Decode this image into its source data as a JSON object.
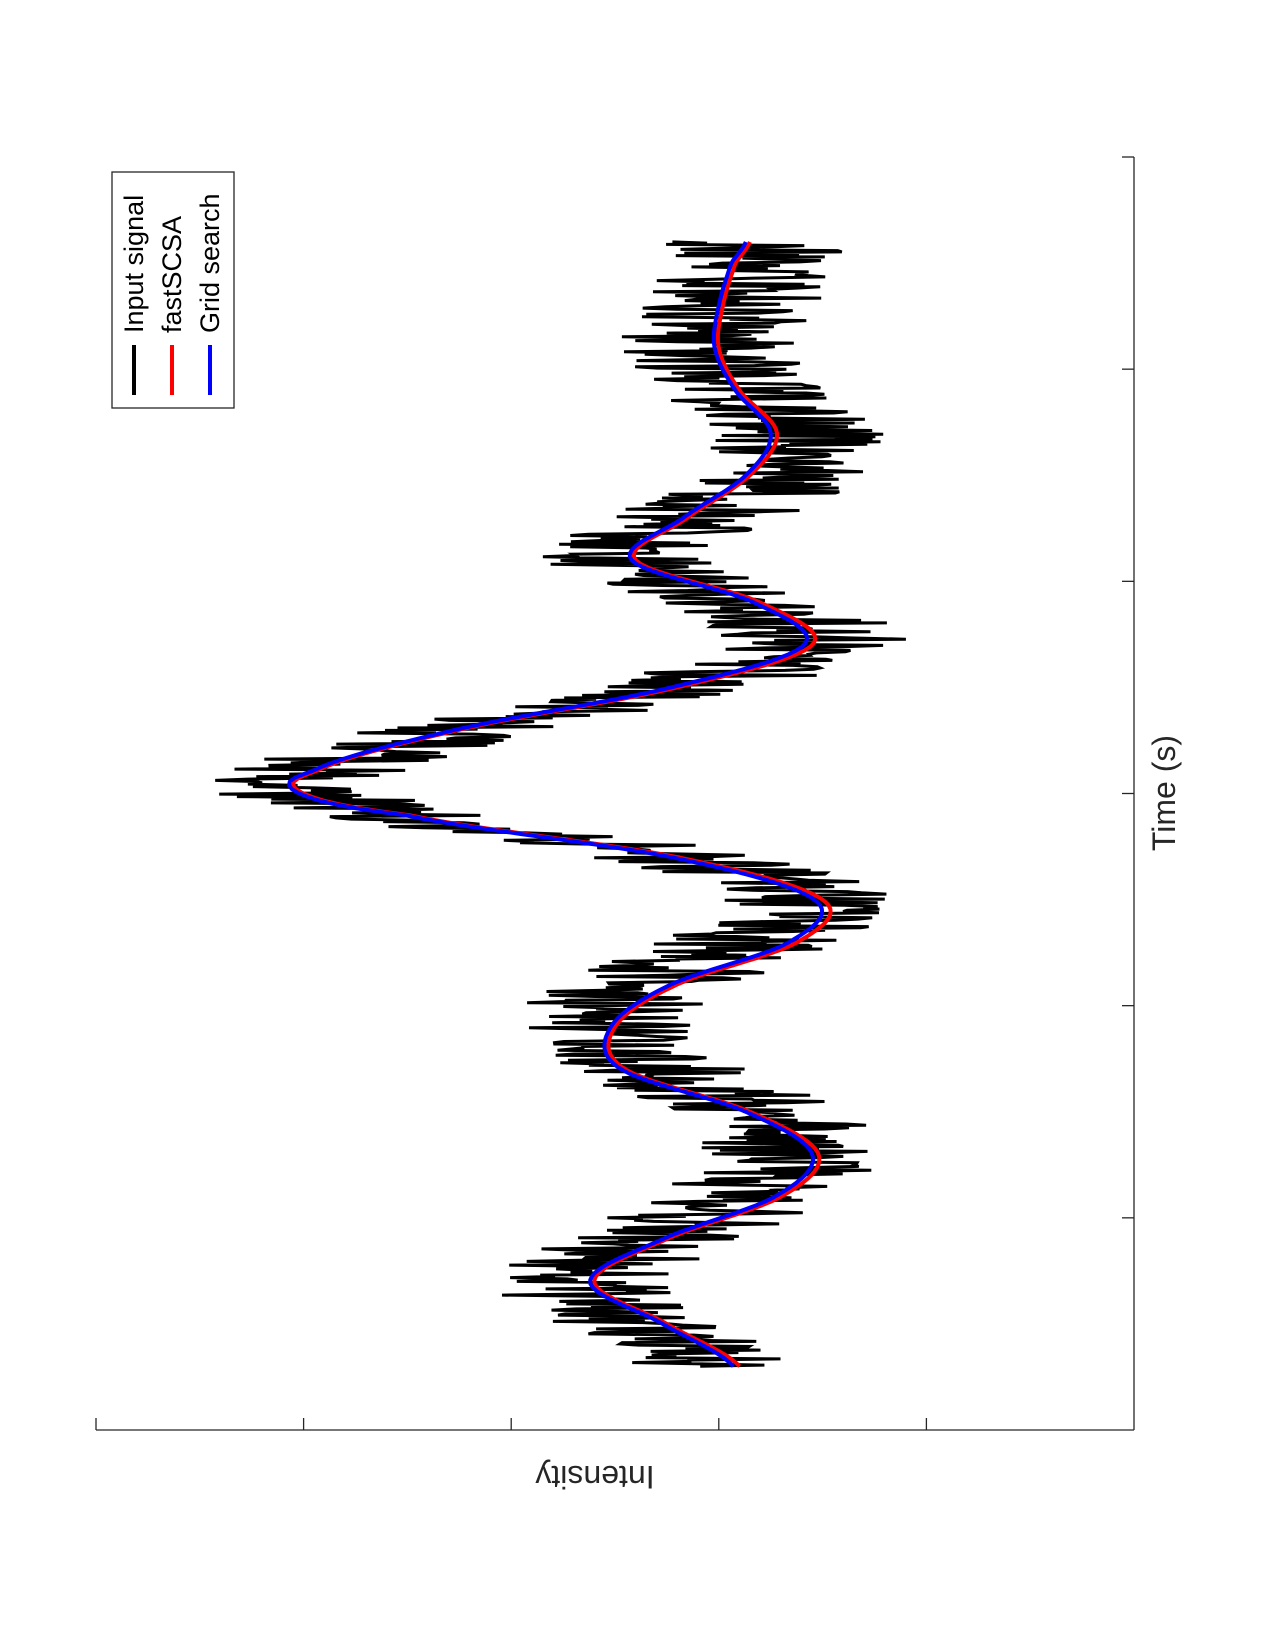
{
  "chart_data": {
    "type": "line",
    "orientation": "rotated-90",
    "xlabel": "Time (s)",
    "ylabel": "Intensity",
    "xlim": [
      0,
      6
    ],
    "ylim": [
      0,
      5
    ],
    "grid": false,
    "legend_position": "top-right",
    "series": [
      {
        "name": "Input signal",
        "color": "#000000",
        "style": "noisy",
        "noise_amplitude": 0.45,
        "x": [
          0.3,
          0.5,
          0.7,
          0.9,
          1.1,
          1.3,
          1.5,
          1.7,
          1.9,
          2.1,
          2.3,
          2.5,
          2.7,
          2.9,
          3.0,
          3.1,
          3.3,
          3.5,
          3.7,
          3.9,
          4.1,
          4.3,
          4.5,
          4.7,
          4.9,
          5.1,
          5.3,
          5.5,
          5.6
        ],
        "y": [
          1.95,
          2.35,
          2.7,
          2.3,
          1.9,
          1.65,
          1.8,
          2.3,
          2.55,
          2.35,
          1.85,
          1.6,
          2.2,
          3.5,
          4.0,
          3.95,
          3.25,
          2.2,
          1.55,
          1.85,
          2.45,
          2.1,
          1.75,
          1.65,
          1.95,
          2.05,
          1.95,
          1.9,
          1.8
        ]
      },
      {
        "name": "fastSCSA",
        "color": "#ff0000",
        "x": [
          0.3,
          0.5,
          0.7,
          0.9,
          1.1,
          1.3,
          1.5,
          1.7,
          1.9,
          2.1,
          2.3,
          2.5,
          2.7,
          2.9,
          3.0,
          3.1,
          3.3,
          3.5,
          3.7,
          3.9,
          4.1,
          4.3,
          4.5,
          4.7,
          4.9,
          5.1,
          5.3,
          5.5,
          5.6
        ],
        "y": [
          1.9,
          2.25,
          2.6,
          2.25,
          1.7,
          1.52,
          1.85,
          2.45,
          2.5,
          2.2,
          1.62,
          1.5,
          2.2,
          3.5,
          4.0,
          3.95,
          3.25,
          2.2,
          1.55,
          1.8,
          2.4,
          2.15,
          1.85,
          1.72,
          1.9,
          2.0,
          1.98,
          1.92,
          1.85
        ]
      },
      {
        "name": "Grid search",
        "color": "#0000ff",
        "x": [
          0.3,
          0.5,
          0.7,
          0.9,
          1.1,
          1.3,
          1.5,
          1.7,
          1.9,
          2.1,
          2.3,
          2.5,
          2.7,
          2.9,
          3.0,
          3.1,
          3.3,
          3.5,
          3.7,
          3.9,
          4.1,
          4.3,
          4.5,
          4.7,
          4.9,
          5.1,
          5.3,
          5.5,
          5.6
        ],
        "y": [
          1.93,
          2.27,
          2.62,
          2.27,
          1.73,
          1.55,
          1.87,
          2.47,
          2.52,
          2.23,
          1.66,
          1.54,
          2.23,
          3.52,
          4.02,
          3.97,
          3.27,
          2.23,
          1.59,
          1.83,
          2.42,
          2.17,
          1.87,
          1.75,
          1.92,
          2.02,
          2.0,
          1.94,
          1.87
        ]
      }
    ]
  }
}
